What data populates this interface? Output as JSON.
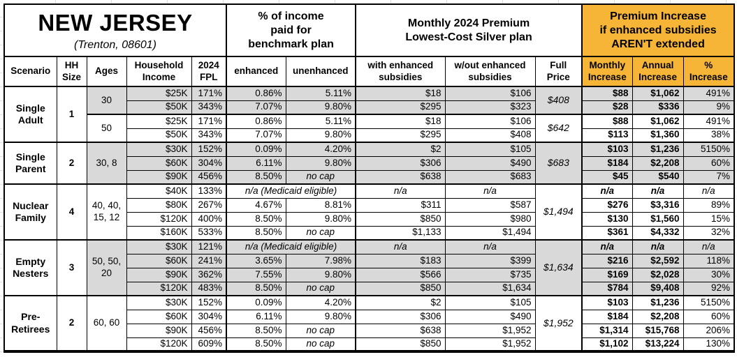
{
  "title": "NEW JERSEY",
  "subtitle": "(Trenton, 08601)",
  "group_headers": {
    "benchmark": "% of income\npaid for\nbenchmark plan",
    "premium": "Monthly 2024 Premium\nLowest-Cost Silver plan",
    "increase": "Premium Increase\nif enhanced subsidies\nAREN'T extended"
  },
  "colors": {
    "accent_orange": "#F6B537",
    "row_shading_gray": "#D9D9D9",
    "border_black": "#000000"
  },
  "columns": [
    {
      "key": "scenario",
      "label": "Scenario"
    },
    {
      "key": "hh-size",
      "label": "HH\nSize"
    },
    {
      "key": "ages",
      "label": "Ages"
    },
    {
      "key": "household-income",
      "label": "Household\nIncome"
    },
    {
      "key": "2024-fpl",
      "label": "2024\nFPL"
    },
    {
      "key": "enhanced",
      "label": "enhanced",
      "thick_left": true
    },
    {
      "key": "unenhanced",
      "label": "unenhanced"
    },
    {
      "key": "with-enhanced-subsidies",
      "label": "with enhanced\nsubsidies",
      "thick_left": true
    },
    {
      "key": "wout-enhanced-subsidies",
      "label": "w/out enhanced\nsubsidies"
    },
    {
      "key": "full-price",
      "label": "Full\nPrice"
    },
    {
      "key": "monthly-increase",
      "label": "Monthly\nIncrease",
      "orange": true,
      "thick_left": true
    },
    {
      "key": "annual-increase",
      "label": "Annual\nIncrease",
      "orange": true
    },
    {
      "key": "pct-increase",
      "label": "%\nIncrease",
      "orange": true
    }
  ],
  "groups": [
    {
      "scenario": "Single Adult",
      "hh_size": "1",
      "subgroups": [
        {
          "ages": "30",
          "shaded": true,
          "full_price": "$408",
          "rows": [
            {
              "income": "$25K",
              "fpl": "171%",
              "enhanced": "0.86%",
              "unenhanced": "5.11%",
              "with_sub": "$18",
              "wout_sub": "$106",
              "monthly": "$88",
              "annual": "$1,062",
              "pct": "491%"
            },
            {
              "income": "$50K",
              "fpl": "343%",
              "enhanced": "7.07%",
              "unenhanced": "9.80%",
              "with_sub": "$295",
              "wout_sub": "$323",
              "monthly": "$28",
              "annual": "$336",
              "pct": "9%"
            }
          ]
        },
        {
          "ages": "50",
          "shaded": false,
          "full_price": "$642",
          "rows": [
            {
              "income": "$25K",
              "fpl": "171%",
              "enhanced": "0.86%",
              "unenhanced": "5.11%",
              "with_sub": "$18",
              "wout_sub": "$106",
              "monthly": "$88",
              "annual": "$1,062",
              "pct": "491%"
            },
            {
              "income": "$50K",
              "fpl": "343%",
              "enhanced": "7.07%",
              "unenhanced": "9.80%",
              "with_sub": "$295",
              "wout_sub": "$408",
              "monthly": "$113",
              "annual": "$1,360",
              "pct": "38%"
            }
          ]
        }
      ]
    },
    {
      "scenario": "Single Parent",
      "hh_size": "2",
      "subgroups": [
        {
          "ages": "30, 8",
          "shaded": true,
          "full_price": "$683",
          "rows": [
            {
              "income": "$30K",
              "fpl": "152%",
              "enhanced": "0.09%",
              "unenhanced": "4.20%",
              "with_sub": "$2",
              "wout_sub": "$105",
              "monthly": "$103",
              "annual": "$1,236",
              "pct": "5150%"
            },
            {
              "income": "$60K",
              "fpl": "304%",
              "enhanced": "6.11%",
              "unenhanced": "9.80%",
              "with_sub": "$306",
              "wout_sub": "$490",
              "monthly": "$184",
              "annual": "$2,208",
              "pct": "60%"
            },
            {
              "income": "$90K",
              "fpl": "456%",
              "enhanced": "8.50%",
              "unenhanced": "no cap",
              "with_sub": "$638",
              "wout_sub": "$683",
              "monthly": "$45",
              "annual": "$540",
              "pct": "7%"
            }
          ]
        }
      ]
    },
    {
      "scenario": "Nuclear Family",
      "hh_size": "4",
      "subgroups": [
        {
          "ages": "40, 40, 15, 12",
          "shaded": false,
          "full_price": "$1,494",
          "rows": [
            {
              "income": "$40K",
              "fpl": "133%",
              "medicaid_label": "n/a (Medicaid eligible)",
              "with_sub": "n/a",
              "wout_sub": "n/a",
              "monthly": "n/a",
              "annual": "n/a",
              "pct": "n/a"
            },
            {
              "income": "$80K",
              "fpl": "267%",
              "enhanced": "4.67%",
              "unenhanced": "8.81%",
              "with_sub": "$311",
              "wout_sub": "$587",
              "monthly": "$276",
              "annual": "$3,316",
              "pct": "89%"
            },
            {
              "income": "$120K",
              "fpl": "400%",
              "enhanced": "8.50%",
              "unenhanced": "9.80%",
              "with_sub": "$850",
              "wout_sub": "$980",
              "monthly": "$130",
              "annual": "$1,560",
              "pct": "15%"
            },
            {
              "income": "$160K",
              "fpl": "533%",
              "enhanced": "8.50%",
              "unenhanced": "no cap",
              "with_sub": "$1,133",
              "wout_sub": "$1,494",
              "monthly": "$361",
              "annual": "$4,332",
              "pct": "32%"
            }
          ]
        }
      ]
    },
    {
      "scenario": "Empty Nesters",
      "hh_size": "3",
      "subgroups": [
        {
          "ages": "50, 50, 20",
          "shaded": true,
          "full_price": "$1,634",
          "rows": [
            {
              "income": "$30K",
              "fpl": "121%",
              "medicaid_label": "n/a (Medicaid eligible)",
              "with_sub": "n/a",
              "wout_sub": "n/a",
              "monthly": "n/a",
              "annual": "n/a",
              "pct": "n/a"
            },
            {
              "income": "$60K",
              "fpl": "241%",
              "enhanced": "3.65%",
              "unenhanced": "7.98%",
              "with_sub": "$183",
              "wout_sub": "$399",
              "monthly": "$216",
              "annual": "$2,592",
              "pct": "118%"
            },
            {
              "income": "$90K",
              "fpl": "362%",
              "enhanced": "7.55%",
              "unenhanced": "9.80%",
              "with_sub": "$566",
              "wout_sub": "$735",
              "monthly": "$169",
              "annual": "$2,028",
              "pct": "30%"
            },
            {
              "income": "$120K",
              "fpl": "483%",
              "enhanced": "8.50%",
              "unenhanced": "no cap",
              "with_sub": "$850",
              "wout_sub": "$1,634",
              "monthly": "$784",
              "annual": "$9,408",
              "pct": "92%"
            }
          ]
        }
      ]
    },
    {
      "scenario": "Pre-Retirees",
      "hh_size": "2",
      "subgroups": [
        {
          "ages": "60, 60",
          "shaded": false,
          "full_price": "$1,952",
          "rows": [
            {
              "income": "$30K",
              "fpl": "152%",
              "enhanced": "0.09%",
              "unenhanced": "4.20%",
              "with_sub": "$2",
              "wout_sub": "$105",
              "monthly": "$103",
              "annual": "$1,236",
              "pct": "5150%"
            },
            {
              "income": "$60K",
              "fpl": "304%",
              "enhanced": "6.11%",
              "unenhanced": "9.80%",
              "with_sub": "$306",
              "wout_sub": "$490",
              "monthly": "$184",
              "annual": "$2,208",
              "pct": "60%"
            },
            {
              "income": "$90K",
              "fpl": "456%",
              "enhanced": "8.50%",
              "unenhanced": "no cap",
              "with_sub": "$638",
              "wout_sub": "$1,952",
              "monthly": "$1,314",
              "annual": "$15,768",
              "pct": "206%"
            },
            {
              "income": "$120K",
              "fpl": "609%",
              "enhanced": "8.50%",
              "unenhanced": "no cap",
              "with_sub": "$850",
              "wout_sub": "$1,952",
              "monthly": "$1,102",
              "annual": "$13,224",
              "pct": "130%"
            }
          ]
        }
      ]
    }
  ]
}
